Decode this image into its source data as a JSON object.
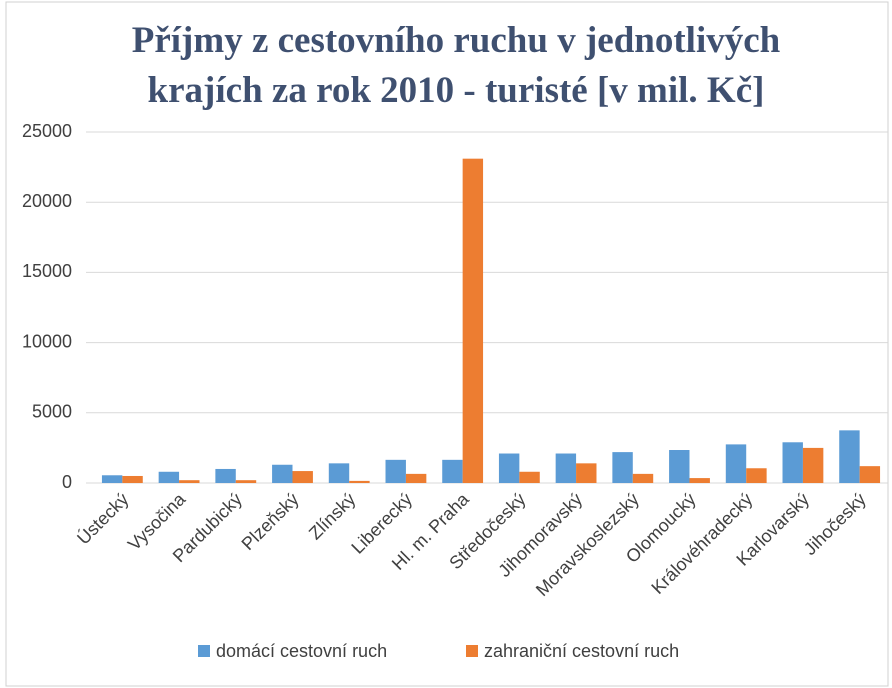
{
  "chart_data": {
    "type": "bar",
    "title": "Příjmy z cestovního ruchu v jednotlivých krajích za rok 2010 - turisté [v mil. Kč]",
    "categories": [
      "Ústecký",
      "Vysočina",
      "Pardubický",
      "Plzeňský",
      "Zlínský",
      "Liberecký",
      "Hl. m. Praha",
      "Středočeský",
      "Jihomoravský",
      "Moravskoslezský",
      "Olomoucký",
      "Královéhradecký",
      "Karlovarský",
      "Jihočeský"
    ],
    "series": [
      {
        "name": "domácí cestovní ruch",
        "color": "#5b9bd5",
        "values": [
          550,
          800,
          1000,
          1300,
          1400,
          1650,
          1650,
          2100,
          2100,
          2200,
          2350,
          2750,
          2900,
          3750
        ]
      },
      {
        "name": "zahraniční cestovní ruch",
        "color": "#ed7d31",
        "values": [
          500,
          200,
          200,
          850,
          150,
          650,
          23100,
          800,
          1400,
          650,
          350,
          1050,
          2500,
          1200
        ]
      }
    ],
    "ylim": [
      0,
      25000
    ],
    "yticks": [
      0,
      5000,
      10000,
      15000,
      20000,
      25000
    ],
    "grid": true,
    "legend": "bottom"
  }
}
